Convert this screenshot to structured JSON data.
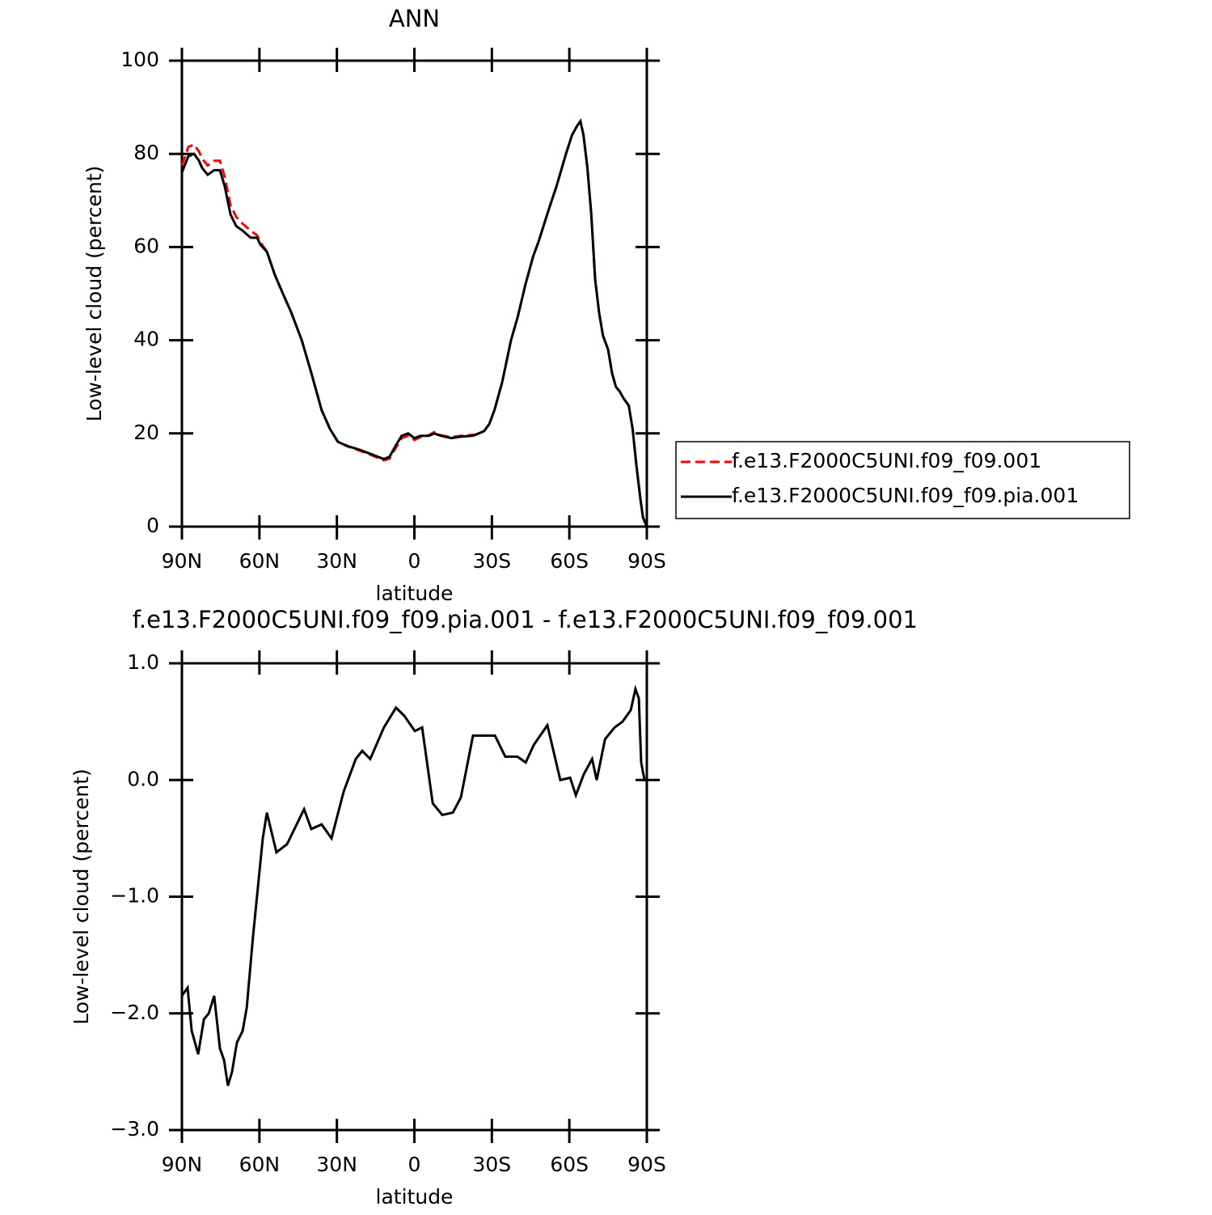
{
  "chart_data": [
    {
      "type": "line",
      "title": "ANN",
      "x_label": "latitude",
      "y_label": "Low-level cloud (percent)",
      "x": [
        90,
        87.5,
        85.3,
        83.4,
        82.2,
        80,
        77.5,
        75.3,
        73.4,
        71.2,
        69,
        66.5,
        63.4,
        60.9,
        59.6,
        57.1,
        54,
        50.9,
        47.7,
        43.6,
        39.9,
        35.9,
        32.7,
        29.6,
        25.9,
        21.2,
        16.5,
        11.8,
        9.6,
        7.1,
        4.9,
        2.4,
        0,
        -2.4,
        -5.6,
        -7.7,
        -10.2,
        -14.3,
        -18,
        -22.7,
        -24,
        -27,
        -29,
        -31,
        -34,
        -37.4,
        -40,
        -43,
        -46,
        -48,
        -52,
        -55,
        -58.7,
        -61,
        -63,
        -64.3,
        -65.5,
        -67,
        -68.5,
        -70,
        -71.5,
        -73,
        -75,
        -76.5,
        -78,
        -79.5,
        -81,
        -83,
        -84.5,
        -86,
        -87.5,
        -88.5,
        -90
      ],
      "xlim": [
        90,
        -90
      ],
      "xticks": [
        {
          "value": 90,
          "label": "90N"
        },
        {
          "value": 60,
          "label": "60N"
        },
        {
          "value": 30,
          "label": "30N"
        },
        0,
        {
          "value": -30,
          "label": "30S"
        },
        {
          "value": -60,
          "label": "60S"
        },
        {
          "value": -90,
          "label": "90S"
        }
      ],
      "ylim": [
        0,
        100
      ],
      "yticks": [
        0,
        20,
        40,
        60,
        80,
        100
      ],
      "legend": "right",
      "series": [
        {
          "name": "f.e13.F2000C5UNI.f09_f09.001",
          "color": "#ff0000",
          "dash": true,
          "values": [
            77.5,
            81.5,
            82,
            80.5,
            79,
            77.5,
            78.5,
            78.5,
            75,
            69,
            66.5,
            65,
            63.5,
            62.5,
            61,
            59,
            54,
            50,
            46,
            40,
            33,
            25,
            21,
            18.2,
            17.2,
            16.3,
            15.3,
            14.2,
            14.6,
            17,
            19,
            19.5,
            18.6,
            19.2,
            19.6,
            20.3,
            19.6,
            19.2,
            19.5,
            19.7,
            19.8,
            20.5,
            22,
            25,
            31,
            40,
            45,
            52,
            58,
            61,
            68,
            73,
            80,
            84,
            86,
            87,
            84,
            77,
            67,
            53,
            46,
            41,
            38,
            33,
            30,
            29,
            27.5,
            26,
            21,
            13,
            6,
            2,
            0
          ]
        },
        {
          "name": "f.e13.F2000C5UNI.f09_f09.pia.001",
          "color": "#000000",
          "dash": false,
          "values": [
            76,
            79.5,
            80,
            78.5,
            77,
            75.5,
            76.5,
            76.5,
            73,
            67,
            64.5,
            63.5,
            62,
            62,
            60.5,
            59,
            54,
            50,
            46,
            40,
            33,
            25,
            21,
            18.2,
            17.3,
            16.5,
            15.5,
            14.5,
            15,
            17.5,
            19.5,
            20,
            19,
            19.5,
            19.5,
            20,
            19.5,
            19,
            19.3,
            19.5,
            19.8,
            20.5,
            22,
            25,
            31,
            40,
            45,
            52,
            58,
            61,
            68,
            73,
            80,
            84,
            86,
            87,
            84,
            77,
            67,
            53,
            46,
            41,
            38,
            33,
            30,
            29,
            27.5,
            26,
            21,
            13,
            6,
            2,
            0
          ]
        }
      ]
    },
    {
      "type": "line",
      "title": "f.e13.F2000C5UNI.f09_f09.pia.001 - f.e13.F2000C5UNI.f09_f09.001",
      "x_label": "latitude",
      "y_label": "Low-level cloud (percent)",
      "x": [
        90,
        89.1,
        87.8,
        86.2,
        83.7,
        81.5,
        79.6,
        77.5,
        75.3,
        73.7,
        72.2,
        70.6,
        68.7,
        66.5,
        64.9,
        62.5,
        58.7,
        57.1,
        53.4,
        49.3,
        42.7,
        39.9,
        35.9,
        32.1,
        27.4,
        22.7,
        20.2,
        17.1,
        11.8,
        7.1,
        3.9,
        -0.2,
        -3,
        -7.1,
        -10.8,
        -14.9,
        -18,
        -22.7,
        -27.4,
        -31.2,
        -35.2,
        -39.9,
        -43.1,
        -46.2,
        -51.5,
        -56.5,
        -60.3,
        -62.5,
        -65.6,
        -68.8,
        -70.6,
        -73.8,
        -77.5,
        -80.6,
        -83.8,
        -85.6,
        -86.9,
        -87.8,
        -89.1,
        -90
      ],
      "xlim": [
        90,
        -90
      ],
      "xticks": [
        {
          "value": 90,
          "label": "90N"
        },
        {
          "value": 60,
          "label": "60N"
        },
        {
          "value": 30,
          "label": "30N"
        },
        0,
        {
          "value": -30,
          "label": "30S"
        },
        {
          "value": -60,
          "label": "60S"
        },
        {
          "value": -90,
          "label": "90S"
        }
      ],
      "ylim": [
        -3,
        1
      ],
      "yticks": [
        {
          "value": -3,
          "label": "−3.0"
        },
        {
          "value": -2,
          "label": "−2.0"
        },
        {
          "value": -1,
          "label": "−1.0"
        },
        {
          "value": 0,
          "label": "0.0"
        },
        {
          "value": 1,
          "label": "1.0"
        }
      ],
      "series": [
        {
          "color": "#000000",
          "dash": false,
          "values": [
            -1.85,
            -1.82,
            -1.78,
            -2.15,
            -2.35,
            -2.05,
            -2.0,
            -1.85,
            -2.3,
            -2.4,
            -2.62,
            -2.5,
            -2.25,
            -2.15,
            -1.95,
            -1.35,
            -0.5,
            -0.28,
            -0.62,
            -0.55,
            -0.25,
            -0.42,
            -0.38,
            -0.5,
            -0.1,
            0.18,
            0.25,
            0.18,
            0.45,
            0.62,
            0.55,
            0.42,
            0.45,
            -0.2,
            -0.3,
            -0.28,
            -0.15,
            0.38,
            0.38,
            0.38,
            0.2,
            0.2,
            0.15,
            0.3,
            0.47,
            0.0,
            0.02,
            -0.13,
            0.05,
            0.18,
            0.0,
            0.35,
            0.45,
            0.5,
            0.6,
            0.78,
            0.7,
            0.15,
            0.0,
            0.0
          ]
        }
      ]
    }
  ]
}
